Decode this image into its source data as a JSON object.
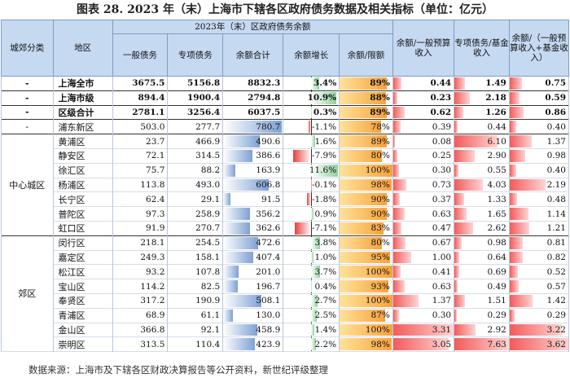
{
  "title": "图表 28.  2023 年（末）上海市下辖各区政府债务数据及相关指标（单位：亿元）",
  "headers": {
    "group": "城郊分类",
    "region": "地区",
    "super": "2023年（末）区政府债务余额",
    "cols": [
      "一般债务",
      "专项债务",
      "余额合计",
      "余额增长",
      "余额/限额",
      "余额/一般预算收入",
      "专项债务/基金收入",
      "余额/（一般预算收入+基金收入）"
    ]
  },
  "rows": [
    {
      "cat": "-",
      "region": "上海全市",
      "general": "3675.5",
      "special": "5156.8",
      "total": "8832.3",
      "growth": "3.4%",
      "ratio": "89%",
      "r1": "0.44",
      "r2": "1.49",
      "r3": "0.75",
      "bold": true
    },
    {
      "cat": "-",
      "region": "上海市级",
      "general": "894.4",
      "special": "1900.4",
      "total": "2794.8",
      "growth": "10.9%",
      "ratio": "88%",
      "r1": "0.23",
      "r2": "2.18",
      "r3": "0.59",
      "bold": true
    },
    {
      "cat": "-",
      "region": "区级合计",
      "general": "2781.1",
      "special": "3256.4",
      "total": "6037.5",
      "growth": "0.3%",
      "ratio": "89%",
      "r1": "0.62",
      "r2": "1.26",
      "r3": "0.86",
      "bold": true
    },
    {
      "cat": "-",
      "region": "浦东新区",
      "general": "503.0",
      "special": "277.7",
      "total": "780.7",
      "growth": "-1.1%",
      "ratio": "78%",
      "r1": "0.39",
      "r2": "0.44",
      "r3": "0.40"
    },
    {
      "cat": "中心城区",
      "region": "黄浦区",
      "general": "23.7",
      "special": "466.9",
      "total": "490.6",
      "growth": "1.6%",
      "ratio": "89%",
      "r1": "0.08",
      "r2": "6.10",
      "r3": "1.37"
    },
    {
      "cat": "",
      "region": "静安区",
      "general": "72.1",
      "special": "314.5",
      "total": "386.6",
      "growth": "-7.9%",
      "ratio": "80%",
      "r1": "0.25",
      "r2": "2.90",
      "r3": "0.98"
    },
    {
      "cat": "",
      "region": "徐汇区",
      "general": "75.7",
      "special": "88.2",
      "total": "163.9",
      "growth": "11.6%",
      "ratio": "100%",
      "r1": "0.30",
      "r2": "0.55",
      "r3": "0.40"
    },
    {
      "cat": "",
      "region": "杨浦区",
      "general": "113.8",
      "special": "493.0",
      "total": "606.8",
      "growth": "-0.1%",
      "ratio": "98%",
      "r1": "0.73",
      "r2": "4.03",
      "r3": "2.19"
    },
    {
      "cat": "",
      "region": "长宁区",
      "general": "62.4",
      "special": "29.1",
      "total": "91.5",
      "growth": "-1.8%",
      "ratio": "90%",
      "r1": "0.37",
      "r2": "1.33",
      "r3": "0.48"
    },
    {
      "cat": "",
      "region": "普陀区",
      "general": "97.3",
      "special": "258.9",
      "total": "356.2",
      "growth": "0.9%",
      "ratio": "90%",
      "r1": "0.63",
      "r2": "1.65",
      "r3": "1.14"
    },
    {
      "cat": "",
      "region": "虹口区",
      "general": "91.9",
      "special": "270.7",
      "total": "362.6",
      "growth": "-7.1%",
      "ratio": "83%",
      "r1": "0.47",
      "r2": "2.62",
      "r3": "1.21"
    },
    {
      "cat": "郊区",
      "region": "闵行区",
      "general": "218.1",
      "special": "254.5",
      "total": "472.6",
      "growth": "3.8%",
      "ratio": "80%",
      "r1": "0.67",
      "r2": "0.98",
      "r3": "0.81"
    },
    {
      "cat": "",
      "region": "嘉定区",
      "general": "249.3",
      "special": "158.1",
      "total": "407.4",
      "growth": "1.0%",
      "ratio": "95%",
      "r1": "1.00",
      "r2": "0.64",
      "r3": "0.82"
    },
    {
      "cat": "",
      "region": "松江区",
      "general": "93.2",
      "special": "107.8",
      "total": "201.0",
      "growth": "3.7%",
      "ratio": "100%",
      "r1": "0.41",
      "r2": "0.69",
      "r3": "0.52"
    },
    {
      "cat": "",
      "region": "宝山区",
      "general": "114.2",
      "special": "82.5",
      "total": "196.7",
      "growth": "0.4%",
      "ratio": "93%",
      "r1": "0.63",
      "r2": "0.49",
      "r3": "0.57"
    },
    {
      "cat": "",
      "region": "奉贤区",
      "general": "317.2",
      "special": "190.9",
      "total": "508.1",
      "growth": "2.7%",
      "ratio": "100%",
      "r1": "1.37",
      "r2": "1.51",
      "r3": "1.42"
    },
    {
      "cat": "",
      "region": "青浦区",
      "general": "68.9",
      "special": "61.1",
      "total": "130.0",
      "growth": "2.5%",
      "ratio": "87%",
      "r1": "0.30",
      "r2": "0.29",
      "r3": "0.29"
    },
    {
      "cat": "",
      "region": "金山区",
      "general": "366.8",
      "special": "92.1",
      "total": "458.9",
      "growth": "1.4%",
      "ratio": "100%",
      "r1": "3.31",
      "r2": "2.92",
      "r3": "3.22"
    },
    {
      "cat": "",
      "region": "崇明区",
      "general": "313.5",
      "special": "110.4",
      "total": "423.9",
      "growth": "2.2%",
      "ratio": "98%",
      "r1": "3.05",
      "r2": "7.63",
      "r3": "3.62"
    }
  ],
  "source": "数据来源：上海市及下辖各区财政决算报告等公开资料，新世纪评级整理"
}
